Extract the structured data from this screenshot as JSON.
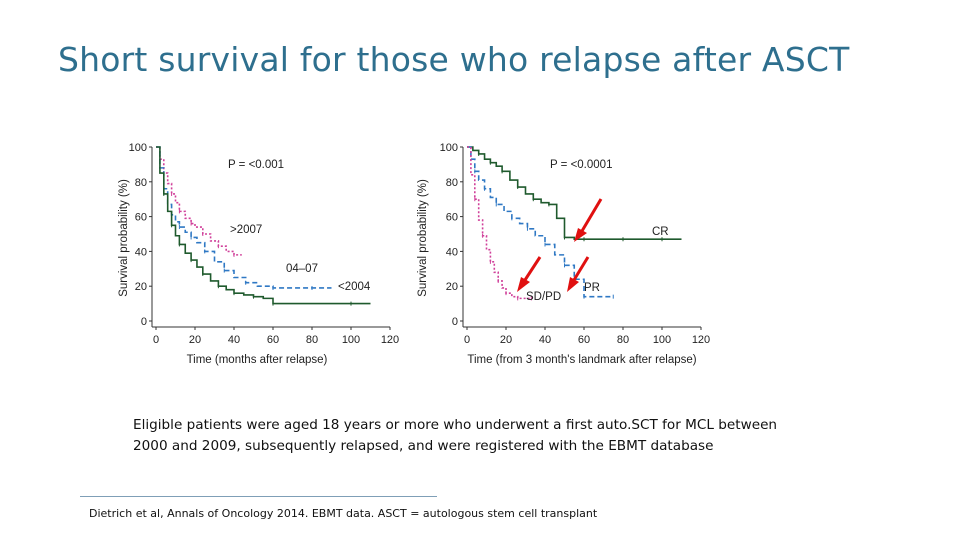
{
  "title": "Short survival for those who relapse after ASCT",
  "caption": {
    "line1": "Eligible patients were aged 18 years or more who  underwent a first auto.SCT for MCL between",
    "line2": "2000 and 2009,  subsequently relapsed, and were registered with the EBMT  database"
  },
  "reference": "Dietrich et al, Annals of Oncology 2014. EBMT data. ASCT = autologous stem cell transplant",
  "colors": {
    "title": "#2e6f8e",
    "arrow": "#e01010"
  },
  "chart_data": [
    {
      "type": "line",
      "title": "",
      "p_value": "P = <0.001",
      "xlabel": "Time (months after relapse)",
      "ylabel": "Survival probability (%)",
      "xlim": [
        0,
        120
      ],
      "ylim": [
        0,
        100
      ],
      "xticks": [
        "0",
        "20",
        "40",
        "60",
        "80",
        "100",
        "120"
      ],
      "yticks": [
        "0",
        "20",
        "40",
        "60",
        "80",
        "100"
      ],
      "series": [
        {
          "name": ">2007",
          "color": "#d0409a",
          "dash": "2,2",
          "x": [
            0,
            2,
            4,
            6,
            8,
            10,
            12,
            15,
            18,
            20,
            24,
            28,
            32,
            36,
            40,
            44
          ],
          "y": [
            100,
            93,
            85,
            79,
            73,
            68,
            63,
            59,
            56,
            54,
            50,
            46,
            43,
            40,
            38,
            38
          ]
        },
        {
          "name": "04–07",
          "color": "#2f78c4",
          "dash": "5,3",
          "x": [
            0,
            2,
            4,
            6,
            8,
            10,
            12,
            15,
            18,
            21,
            25,
            30,
            35,
            40,
            46,
            52,
            60,
            70,
            80,
            90
          ],
          "y": [
            100,
            88,
            76,
            67,
            61,
            57,
            54,
            51,
            48,
            45,
            40,
            34,
            29,
            25,
            22,
            20,
            19,
            19,
            19,
            19
          ]
        },
        {
          "name": "<2004",
          "color": "#1f5a2d",
          "dash": "",
          "x": [
            0,
            2,
            4,
            6,
            8,
            10,
            12,
            15,
            18,
            21,
            24,
            28,
            32,
            36,
            40,
            45,
            50,
            55,
            60,
            80,
            100,
            110
          ],
          "y": [
            100,
            85,
            73,
            63,
            55,
            49,
            44,
            39,
            35,
            31,
            27,
            23,
            20,
            18,
            16,
            15,
            14,
            13,
            10,
            10,
            10,
            10
          ]
        }
      ],
      "labels": [
        ">2007",
        "04–07",
        "<2004"
      ]
    },
    {
      "type": "line",
      "title": "",
      "p_value": "P = <0.0001",
      "xlabel": "Time (from 3 month's landmark after relapse)",
      "ylabel": "Survival probability (%)",
      "xlim": [
        0,
        120
      ],
      "ylim": [
        0,
        100
      ],
      "xticks": [
        "0",
        "20",
        "40",
        "60",
        "80",
        "100",
        "120"
      ],
      "yticks": [
        "0",
        "20",
        "40",
        "60",
        "80",
        "100"
      ],
      "series": [
        {
          "name": "CR",
          "color": "#1f5a2d",
          "dash": "",
          "x": [
            0,
            3,
            6,
            9,
            12,
            15,
            18,
            22,
            26,
            30,
            34,
            38,
            42,
            46,
            50,
            55,
            60,
            70,
            80,
            90,
            100,
            110
          ],
          "y": [
            100,
            98,
            96,
            93,
            91,
            89,
            86,
            81,
            77,
            73,
            70,
            68,
            67,
            59,
            48,
            47,
            47,
            47,
            47,
            47,
            47,
            47
          ]
        },
        {
          "name": "PR",
          "color": "#2f78c4",
          "dash": "5,3",
          "x": [
            0,
            2,
            4,
            6,
            9,
            12,
            15,
            19,
            23,
            27,
            31,
            35,
            40,
            45,
            50,
            55,
            60,
            65,
            75
          ],
          "y": [
            100,
            93,
            86,
            81,
            76,
            71,
            67,
            63,
            59,
            56,
            53,
            49,
            44,
            38,
            32,
            24,
            14,
            14,
            14
          ]
        },
        {
          "name": "SD/PD",
          "color": "#d0409a",
          "dash": "2,2",
          "x": [
            0,
            2,
            4,
            6,
            8,
            10,
            12,
            14,
            16,
            18,
            20,
            23,
            26,
            30,
            33
          ],
          "y": [
            100,
            84,
            70,
            58,
            49,
            41,
            34,
            28,
            23,
            19,
            16,
            14,
            13,
            13,
            13
          ]
        }
      ],
      "labels": [
        "CR",
        "PR",
        "SD/PD"
      ]
    }
  ]
}
